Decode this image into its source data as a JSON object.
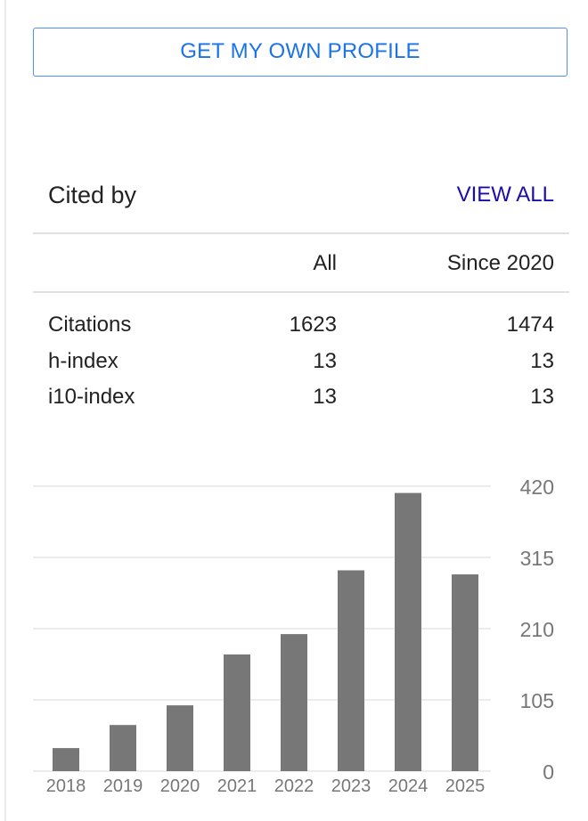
{
  "profile_button": {
    "label": "GET MY OWN PROFILE"
  },
  "cited_by": {
    "title": "Cited by",
    "view_all": "VIEW ALL",
    "columns": {
      "all": "All",
      "since": "Since 2020"
    },
    "rows": [
      {
        "label": "Citations",
        "all": "1623",
        "since": "1474"
      },
      {
        "label": "h-index",
        "all": "13",
        "since": "13"
      },
      {
        "label": "i10-index",
        "all": "13",
        "since": "13"
      }
    ]
  },
  "colors": {
    "bar": "#777777",
    "grid": "#e6e6e6",
    "tick_text": "#777777",
    "link": "#1a0dab",
    "button_text": "#1a73e8",
    "button_border": "#4d90fe"
  },
  "chart_data": {
    "type": "bar",
    "categories": [
      "2018",
      "2019",
      "2020",
      "2021",
      "2022",
      "2023",
      "2024",
      "2025"
    ],
    "values": [
      34,
      68,
      97,
      172,
      202,
      296,
      410,
      290
    ],
    "yticks": [
      0,
      105,
      210,
      315,
      420
    ],
    "ylim": [
      0,
      420
    ],
    "title": "",
    "xlabel": "",
    "ylabel": "",
    "grid": true,
    "y_axis_side": "right"
  }
}
